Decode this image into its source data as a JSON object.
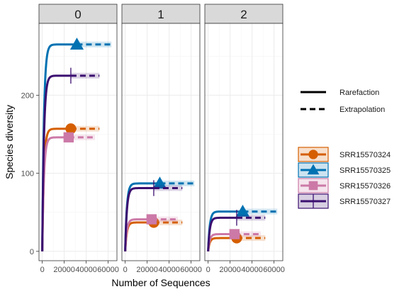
{
  "chart_data": {
    "type": "line",
    "xlabel": "Number of Sequences",
    "ylabel": "Species diversity",
    "xlim": [
      -3000,
      68000
    ],
    "ylim": [
      -12,
      292
    ],
    "x_ticks": [
      0,
      20000,
      40000,
      60000
    ],
    "x_tick_labels": [
      "0",
      "20000",
      "40000",
      "60000"
    ],
    "y_ticks": [
      0,
      100,
      200
    ],
    "y_tick_labels": [
      "0",
      "100",
      "200"
    ],
    "grid": true,
    "legend_position": "right",
    "linetype_legend": [
      "Rarefaction",
      "Extrapolation"
    ],
    "facets": [
      "0",
      "1",
      "2"
    ],
    "series": [
      {
        "name": "SRR15570324",
        "color": "#d55e00",
        "marker": "circle",
        "values": [
          {
            "facet": "0",
            "observed_x": 26000,
            "observed_y": 157,
            "max_x": 52000,
            "max_y": 157
          },
          {
            "facet": "1",
            "observed_x": 26000,
            "observed_y": 37,
            "max_x": 52000,
            "max_y": 37
          },
          {
            "facet": "2",
            "observed_x": 26000,
            "observed_y": 17,
            "max_x": 52000,
            "max_y": 17
          }
        ]
      },
      {
        "name": "SRR15570325",
        "color": "#0072b2",
        "marker": "triangle",
        "values": [
          {
            "facet": "0",
            "observed_x": 31500,
            "observed_y": 265,
            "max_x": 63000,
            "max_y": 265
          },
          {
            "facet": "1",
            "observed_x": 31500,
            "observed_y": 87,
            "max_x": 63000,
            "max_y": 87
          },
          {
            "facet": "2",
            "observed_x": 31500,
            "observed_y": 51,
            "max_x": 63000,
            "max_y": 51
          }
        ]
      },
      {
        "name": "SRR15570326",
        "color": "#cc79a7",
        "marker": "square",
        "values": [
          {
            "facet": "0",
            "observed_x": 24000,
            "observed_y": 146,
            "max_x": 48000,
            "max_y": 146
          },
          {
            "facet": "1",
            "observed_x": 24000,
            "observed_y": 41,
            "max_x": 48000,
            "max_y": 41
          },
          {
            "facet": "2",
            "observed_x": 24000,
            "observed_y": 22,
            "max_x": 48000,
            "max_y": 22
          }
        ]
      },
      {
        "name": "SRR15570327",
        "color": "#3b0f70",
        "marker": "vline",
        "values": [
          {
            "facet": "0",
            "observed_x": 26000,
            "observed_y": 225,
            "max_x": 52000,
            "max_y": 225
          },
          {
            "facet": "1",
            "observed_x": 26000,
            "observed_y": 81,
            "max_x": 52000,
            "max_y": 81
          },
          {
            "facet": "2",
            "observed_x": 26000,
            "observed_y": 43,
            "max_x": 52000,
            "max_y": 43
          }
        ]
      }
    ]
  }
}
